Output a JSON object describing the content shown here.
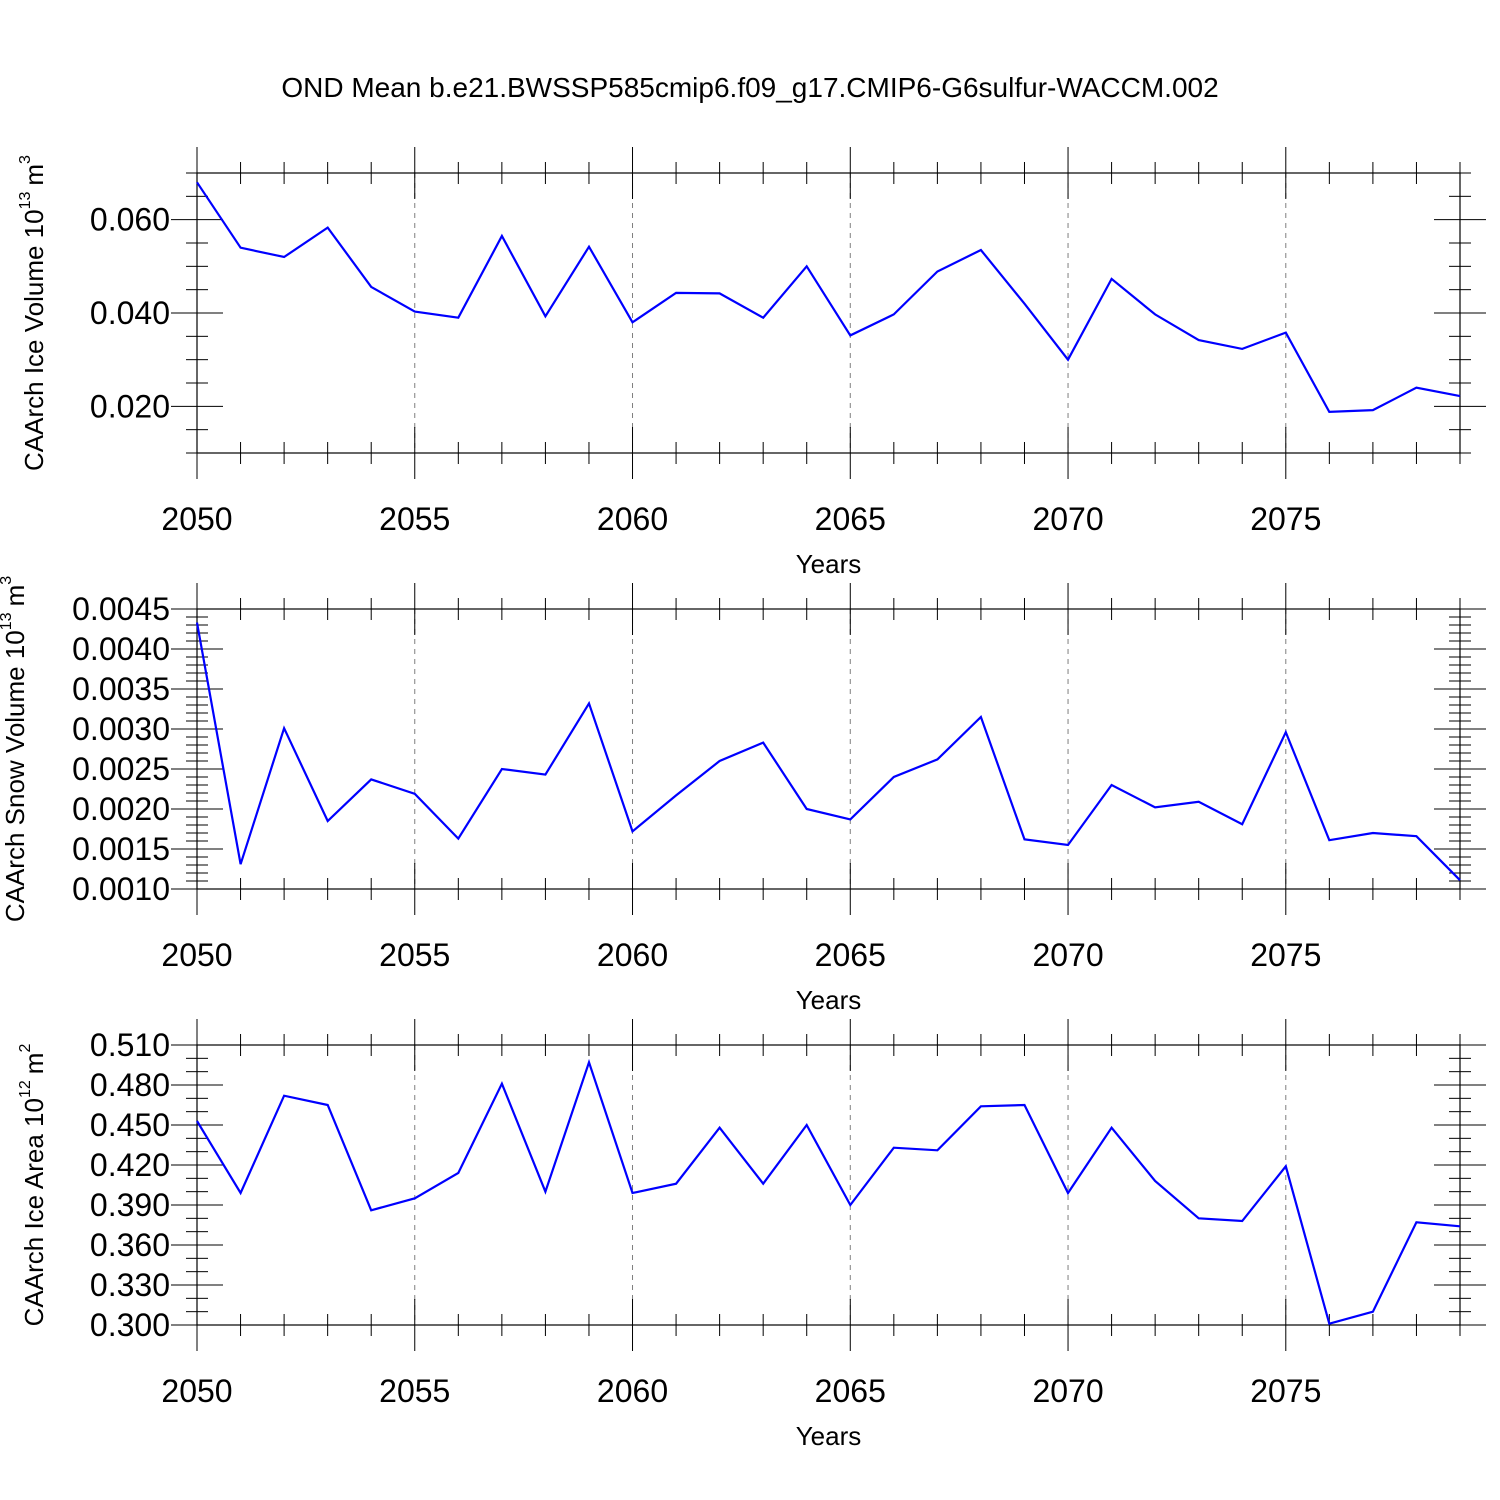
{
  "title": "OND Mean b.e21.BWSSP585cmip6.f09_g17.CMIP6-G6sulfur-WACCM.002",
  "chart_data": [
    {
      "type": "line",
      "title": "",
      "xlabel": "Years",
      "ylabel": "CAArch Ice Volume 10",
      "ylabel_exp": "13",
      "ylabel_unit": "m",
      "ylabel_unit_exp": "3",
      "xlim": [
        2050,
        2079
      ],
      "ylim": [
        0.01,
        0.07
      ],
      "xticks": [
        "2050",
        "2055",
        "2060",
        "2065",
        "2070",
        "2075"
      ],
      "yticks": [
        "0.020",
        "0.040",
        "0.060"
      ],
      "ytick_values": [
        0.02,
        0.04,
        0.06
      ],
      "yminor_step": 0.005,
      "grid": "vertical dashed at major x ticks",
      "line_color": "#0000ff",
      "x": [
        2050,
        2051,
        2052,
        2053,
        2054,
        2055,
        2056,
        2057,
        2058,
        2059,
        2060,
        2061,
        2062,
        2063,
        2064,
        2065,
        2066,
        2067,
        2068,
        2069,
        2070,
        2071,
        2072,
        2073,
        2074,
        2075,
        2076,
        2077,
        2078,
        2079
      ],
      "y": [
        0.068,
        0.054,
        0.052,
        0.0583,
        0.0456,
        0.0403,
        0.039,
        0.0565,
        0.0393,
        0.0542,
        0.038,
        0.0443,
        0.0442,
        0.039,
        0.05,
        0.0352,
        0.0397,
        0.0489,
        0.0535,
        0.042,
        0.03,
        0.0473,
        0.0397,
        0.0342,
        0.0323,
        0.0358,
        0.0188,
        0.0192,
        0.024,
        0.0222
      ]
    },
    {
      "type": "line",
      "title": "",
      "xlabel": "Years",
      "ylabel": "CAArch Snow Volume 10",
      "ylabel_exp": "13",
      "ylabel_unit": "m",
      "ylabel_unit_exp": "3",
      "xlim": [
        2050,
        2079
      ],
      "ylim": [
        0.001,
        0.0045
      ],
      "xticks": [
        "2050",
        "2055",
        "2060",
        "2065",
        "2070",
        "2075"
      ],
      "yticks": [
        "0.0010",
        "0.0015",
        "0.0020",
        "0.0025",
        "0.0030",
        "0.0035",
        "0.0040",
        "0.0045"
      ],
      "ytick_values": [
        0.001,
        0.0015,
        0.002,
        0.0025,
        0.003,
        0.0035,
        0.004,
        0.0045
      ],
      "yminor_step": 0.0001,
      "grid": "vertical dashed at major x ticks",
      "line_color": "#0000ff",
      "x": [
        2050,
        2051,
        2052,
        2053,
        2054,
        2055,
        2056,
        2057,
        2058,
        2059,
        2060,
        2061,
        2062,
        2063,
        2064,
        2065,
        2066,
        2067,
        2068,
        2069,
        2070,
        2071,
        2072,
        2073,
        2074,
        2075,
        2076,
        2077,
        2078,
        2079
      ],
      "y": [
        0.00433,
        0.00131,
        0.00301,
        0.00185,
        0.00237,
        0.00219,
        0.00163,
        0.0025,
        0.00243,
        0.00332,
        0.00172,
        0.00217,
        0.0026,
        0.00283,
        0.002,
        0.00187,
        0.0024,
        0.00262,
        0.00315,
        0.00162,
        0.00155,
        0.0023,
        0.00202,
        0.00209,
        0.00181,
        0.00296,
        0.00161,
        0.0017,
        0.00166,
        0.00111
      ]
    },
    {
      "type": "line",
      "title": "",
      "xlabel": "Years",
      "ylabel": "CAArch Ice Area 10",
      "ylabel_exp": "12",
      "ylabel_unit": "m",
      "ylabel_unit_exp": "2",
      "xlim": [
        2050,
        2079
      ],
      "ylim": [
        0.3,
        0.51
      ],
      "xticks": [
        "2050",
        "2055",
        "2060",
        "2065",
        "2070",
        "2075"
      ],
      "yticks": [
        "0.300",
        "0.330",
        "0.360",
        "0.390",
        "0.420",
        "0.450",
        "0.480",
        "0.510"
      ],
      "ytick_values": [
        0.3,
        0.33,
        0.36,
        0.39,
        0.42,
        0.45,
        0.48,
        0.51
      ],
      "yminor_step": 0.01,
      "grid": "vertical dashed at major x ticks",
      "line_color": "#0000ff",
      "x": [
        2050,
        2051,
        2052,
        2053,
        2054,
        2055,
        2056,
        2057,
        2058,
        2059,
        2060,
        2061,
        2062,
        2063,
        2064,
        2065,
        2066,
        2067,
        2068,
        2069,
        2070,
        2071,
        2072,
        2073,
        2074,
        2075,
        2076,
        2077,
        2078,
        2079
      ],
      "y": [
        0.453,
        0.399,
        0.472,
        0.465,
        0.386,
        0.395,
        0.414,
        0.481,
        0.4,
        0.497,
        0.399,
        0.406,
        0.448,
        0.406,
        0.45,
        0.39,
        0.433,
        0.431,
        0.464,
        0.465,
        0.399,
        0.448,
        0.408,
        0.38,
        0.378,
        0.419,
        0.301,
        0.31,
        0.377,
        0.374
      ]
    }
  ]
}
